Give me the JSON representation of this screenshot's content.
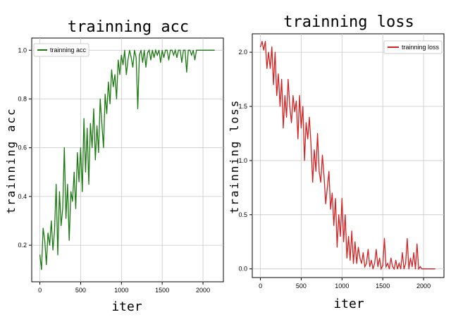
{
  "chart_data": [
    {
      "type": "line",
      "title": "trainning acc",
      "xlabel": "iter",
      "ylabel": "trainning acc",
      "xlim": [
        -100,
        2250
      ],
      "ylim": [
        0.05,
        1.05
      ],
      "xticks": [
        0,
        500,
        1000,
        1500,
        2000
      ],
      "xtick_labels": [
        "0",
        "500",
        "1000",
        "1500",
        "2000"
      ],
      "yticks": [
        0.2,
        0.4,
        0.6,
        0.8,
        1.0
      ],
      "ytick_labels": [
        "0.2",
        "0.4",
        "0.6",
        "0.8",
        "1.0"
      ],
      "grid": true,
      "legend": "top-left",
      "series": [
        {
          "name": "trainning acc",
          "color": "#1a7a10",
          "x": [
            0,
            20,
            40,
            60,
            80,
            100,
            120,
            140,
            160,
            180,
            200,
            220,
            240,
            260,
            280,
            300,
            320,
            340,
            360,
            380,
            400,
            420,
            440,
            460,
            480,
            500,
            520,
            540,
            560,
            580,
            600,
            620,
            640,
            660,
            680,
            700,
            720,
            740,
            760,
            780,
            800,
            820,
            840,
            860,
            880,
            900,
            920,
            940,
            960,
            980,
            1000,
            1020,
            1040,
            1060,
            1080,
            1100,
            1120,
            1140,
            1160,
            1180,
            1200,
            1220,
            1240,
            1260,
            1280,
            1300,
            1320,
            1340,
            1360,
            1380,
            1400,
            1420,
            1440,
            1460,
            1480,
            1500,
            1520,
            1540,
            1560,
            1580,
            1600,
            1620,
            1640,
            1660,
            1680,
            1700,
            1720,
            1740,
            1760,
            1780,
            1800,
            1820,
            1840,
            1860,
            1880,
            1900,
            1920,
            1940,
            1960,
            1980,
            2000,
            2020,
            2040,
            2060,
            2080,
            2100,
            2120,
            2140
          ],
          "y": [
            0.16,
            0.1,
            0.27,
            0.22,
            0.12,
            0.25,
            0.2,
            0.3,
            0.18,
            0.26,
            0.45,
            0.16,
            0.42,
            0.28,
            0.35,
            0.6,
            0.31,
            0.45,
            0.22,
            0.42,
            0.38,
            0.5,
            0.35,
            0.58,
            0.46,
            0.6,
            0.42,
            0.72,
            0.5,
            0.68,
            0.45,
            0.7,
            0.6,
            0.76,
            0.55,
            0.69,
            0.58,
            0.8,
            0.7,
            0.6,
            0.82,
            0.74,
            0.87,
            0.78,
            0.92,
            0.85,
            0.9,
            0.8,
            0.96,
            0.9,
            0.98,
            0.94,
            1.0,
            0.9,
            0.96,
            1.0,
            0.97,
            0.93,
            1.0,
            0.97,
            0.76,
            0.98,
            1.0,
            0.95,
            1.0,
            0.93,
            0.99,
            1.0,
            0.96,
            1.0,
            0.97,
            1.0,
            0.98,
            1.0,
            0.95,
            1.0,
            0.97,
            1.0,
            1.0,
            0.96,
            1.0,
            1.0,
            0.98,
            1.0,
            0.97,
            1.0,
            1.0,
            0.95,
            1.0,
            1.0,
            0.91,
            1.0,
            1.0,
            0.98,
            1.0,
            0.96,
            1.0,
            1.0,
            1.0,
            1.0,
            1.0,
            1.0,
            1.0,
            1.0,
            1.0,
            1.0,
            1.0,
            1.0
          ]
        }
      ]
    },
    {
      "type": "line",
      "title": "trainning loss",
      "xlabel": "iter",
      "ylabel": "trainning loss",
      "xlim": [
        -100,
        2250
      ],
      "ylim": [
        -0.08,
        2.17
      ],
      "xticks": [
        0,
        500,
        1000,
        1500,
        2000
      ],
      "xtick_labels": [
        "0",
        "500",
        "1000",
        "1500",
        "2000"
      ],
      "yticks": [
        0.0,
        0.5,
        1.0,
        1.5,
        2.0
      ],
      "ytick_labels": [
        "0.0",
        "0.5",
        "1.0",
        "1.5",
        "2.0"
      ],
      "grid": true,
      "legend": "top-right",
      "series": [
        {
          "name": "trainning loss",
          "color": "#d42020",
          "x": [
            0,
            20,
            40,
            60,
            80,
            100,
            120,
            140,
            160,
            180,
            200,
            220,
            240,
            260,
            280,
            300,
            320,
            340,
            360,
            380,
            400,
            420,
            440,
            460,
            480,
            500,
            520,
            540,
            560,
            580,
            600,
            620,
            640,
            660,
            680,
            700,
            720,
            740,
            760,
            780,
            800,
            820,
            840,
            860,
            880,
            900,
            920,
            940,
            960,
            980,
            1000,
            1020,
            1040,
            1060,
            1080,
            1100,
            1120,
            1140,
            1160,
            1180,
            1200,
            1220,
            1240,
            1260,
            1280,
            1300,
            1320,
            1340,
            1360,
            1380,
            1400,
            1420,
            1440,
            1460,
            1480,
            1500,
            1520,
            1540,
            1560,
            1580,
            1600,
            1620,
            1640,
            1660,
            1680,
            1700,
            1720,
            1740,
            1760,
            1780,
            1800,
            1820,
            1840,
            1860,
            1880,
            1900,
            1920,
            1940,
            1960,
            1980,
            2000,
            2020,
            2040,
            2060,
            2080,
            2100,
            2120,
            2140
          ],
          "y": [
            2.05,
            2.1,
            2.02,
            2.1,
            1.85,
            2.0,
            1.85,
            2.05,
            1.7,
            2.0,
            1.6,
            1.8,
            1.5,
            1.75,
            1.3,
            1.6,
            1.4,
            1.75,
            1.5,
            1.35,
            1.6,
            1.45,
            1.55,
            1.2,
            1.6,
            1.3,
            1.5,
            1.0,
            1.35,
            1.2,
            1.4,
            1.15,
            0.8,
            1.1,
            0.9,
            1.25,
            0.9,
            0.8,
            1.05,
            0.85,
            0.6,
            0.75,
            0.9,
            0.55,
            0.7,
            0.4,
            0.65,
            0.2,
            0.5,
            0.3,
            0.65,
            0.25,
            0.5,
            0.1,
            0.3,
            0.08,
            0.35,
            0.05,
            0.25,
            0.05,
            0.2,
            0.1,
            0.05,
            0.15,
            0.02,
            0.05,
            0.18,
            0.02,
            0.08,
            0.0,
            0.05,
            0.18,
            0.02,
            0.1,
            0.0,
            0.03,
            0.28,
            0.02,
            0.05,
            0.0,
            0.1,
            0.02,
            0.0,
            0.08,
            0.0,
            0.05,
            0.0,
            0.15,
            0.0,
            0.05,
            0.28,
            0.0,
            0.1,
            0.02,
            0.15,
            0.0,
            0.23,
            0.0,
            0.02,
            0.0,
            0.0,
            0.0,
            0.0,
            0.0,
            0.0,
            0.0,
            0.0,
            0.0
          ]
        }
      ]
    }
  ]
}
